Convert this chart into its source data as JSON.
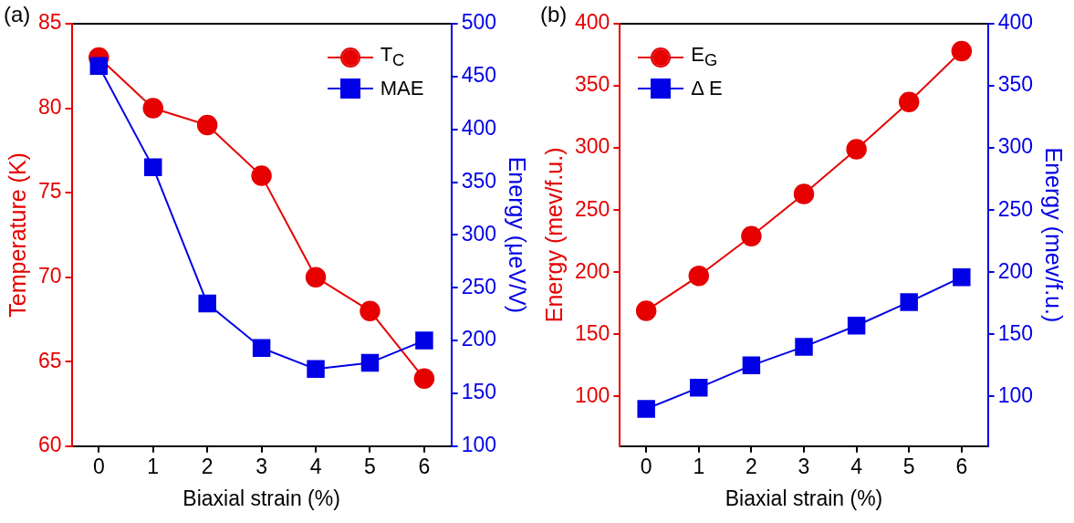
{
  "chart_data": [
    {
      "type": "line",
      "title": "(a)",
      "xlabel": "Biaxial strain (%)",
      "ylabel": "Temperature (K)",
      "y2label": "Energy (μeV/V)",
      "x": [
        0,
        1,
        2,
        3,
        4,
        5,
        6
      ],
      "xlim": [
        -0.5,
        6.5
      ],
      "xticks": [
        0,
        1,
        2,
        3,
        4,
        5,
        6
      ],
      "ylim": [
        60,
        85
      ],
      "yticks": [
        60,
        65,
        70,
        75,
        80,
        85
      ],
      "y2lim": [
        100,
        500
      ],
      "y2ticks": [
        100,
        150,
        200,
        250,
        300,
        350,
        400,
        450,
        500
      ],
      "grid": false,
      "legend": "top right",
      "series": [
        {
          "name": "T$_{C}$",
          "color": "#e60000",
          "marker": "circle",
          "values": [
            83,
            80,
            79,
            76,
            70,
            68,
            64
          ]
        },
        {
          "name": "MAE",
          "color": "#0000e6",
          "marker": "square",
          "axis": "y2",
          "values": [
            460,
            364,
            235,
            193,
            173,
            179,
            200
          ]
        }
      ]
    },
    {
      "type": "line",
      "title": "(b)",
      "xlabel": "Biaxial strain (%)",
      "ylabel": "Energy (mev/f.u.)",
      "y2label": "Energy (mev/f.u.)",
      "x": [
        0,
        1,
        2,
        3,
        4,
        5,
        6
      ],
      "xlim": [
        -0.5,
        6.5
      ],
      "xticks": [
        0,
        1,
        2,
        3,
        4,
        5,
        6
      ],
      "ylim": [
        60,
        400
      ],
      "yticks": [
        100,
        150,
        200,
        250,
        300,
        350,
        400
      ],
      "y2lim": [
        60,
        400
      ],
      "y2ticks": [
        100,
        150,
        200,
        250,
        300,
        350,
        400
      ],
      "grid": false,
      "legend": "top left",
      "series": [
        {
          "name": "E$_{G}$",
          "color": "#e60000",
          "marker": "circle",
          "values": [
            169,
            197,
            229,
            263,
            299,
            337,
            378
          ]
        },
        {
          "name": "Δ E",
          "color": "#0000e6",
          "marker": "square",
          "axis": "y2",
          "values": [
            90,
            107,
            125,
            140,
            157,
            176,
            196
          ]
        }
      ]
    }
  ]
}
